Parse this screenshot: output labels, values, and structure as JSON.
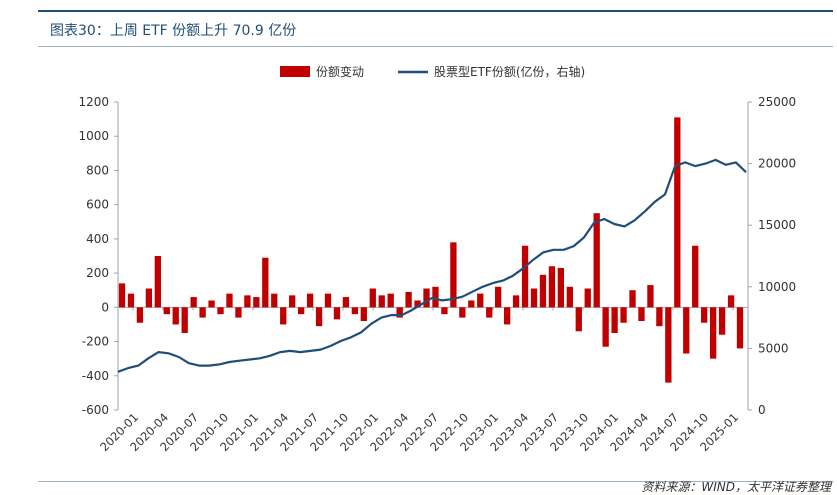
{
  "header": {
    "title": "图表30：上周 ETF 份额上升 70.9 亿份"
  },
  "footer": {
    "source": "资料来源：WIND，太平洋证券整理"
  },
  "colors": {
    "bar": "#c00000",
    "line": "#1f4e79",
    "axis": "#9aa5b1",
    "text": "#333333",
    "title": "#1f4e79"
  },
  "chart_data": {
    "type": "bar+line",
    "legend": {
      "position": "top-center",
      "entries": [
        "份额变动",
        "股票型ETF份额(亿份，右轴)"
      ]
    },
    "grid": false,
    "x_tick_labels": [
      "2020-01",
      "2020-04",
      "2020-07",
      "2020-10",
      "2021-01",
      "2021-04",
      "2021-07",
      "2021-10",
      "2022-01",
      "2022-04",
      "2022-07",
      "2022-10",
      "2023-01",
      "2023-04",
      "2023-07",
      "2023-10",
      "2024-01",
      "2024-04",
      "2024-07",
      "2024-10",
      "2025-01"
    ],
    "y_left": {
      "ylim": [
        -600,
        1200
      ],
      "ticks": [
        -600,
        -400,
        -200,
        0,
        200,
        400,
        600,
        800,
        1000,
        1200
      ]
    },
    "y_right": {
      "ylim": [
        0,
        25000
      ],
      "ticks": [
        0,
        5000,
        10000,
        15000,
        20000,
        25000
      ]
    },
    "share_points": [
      [
        0,
        3100
      ],
      [
        1,
        3400
      ],
      [
        2,
        3600
      ],
      [
        3,
        4200
      ],
      [
        4,
        4700
      ],
      [
        5,
        4600
      ],
      [
        6,
        4300
      ],
      [
        7,
        3800
      ],
      [
        8,
        3600
      ],
      [
        9,
        3600
      ],
      [
        10,
        3700
      ],
      [
        11,
        3900
      ],
      [
        12,
        4000
      ],
      [
        13,
        4100
      ],
      [
        14,
        4200
      ],
      [
        15,
        4400
      ],
      [
        16,
        4700
      ],
      [
        17,
        4800
      ],
      [
        18,
        4700
      ],
      [
        19,
        4800
      ],
      [
        20,
        4900
      ],
      [
        21,
        5200
      ],
      [
        22,
        5600
      ],
      [
        23,
        5900
      ],
      [
        24,
        6300
      ],
      [
        25,
        7000
      ],
      [
        26,
        7500
      ],
      [
        27,
        7700
      ],
      [
        28,
        7700
      ],
      [
        29,
        8100
      ],
      [
        30,
        8600
      ],
      [
        31,
        9100
      ],
      [
        32,
        8900
      ],
      [
        33,
        9000
      ],
      [
        34,
        9200
      ],
      [
        35,
        9600
      ],
      [
        36,
        10000
      ],
      [
        37,
        10300
      ],
      [
        38,
        10500
      ],
      [
        39,
        10900
      ],
      [
        40,
        11500
      ],
      [
        41,
        12200
      ],
      [
        42,
        12800
      ],
      [
        43,
        13000
      ],
      [
        44,
        13000
      ],
      [
        45,
        13300
      ],
      [
        46,
        14000
      ],
      [
        47,
        15200
      ],
      [
        48,
        15500
      ],
      [
        49,
        15100
      ],
      [
        50,
        14900
      ],
      [
        51,
        15400
      ],
      [
        52,
        16100
      ],
      [
        53,
        16900
      ],
      [
        54,
        17500
      ],
      [
        55,
        19800
      ],
      [
        56,
        20100
      ],
      [
        57,
        19800
      ],
      [
        58,
        20000
      ],
      [
        59,
        20300
      ],
      [
        60,
        19900
      ],
      [
        61,
        20100
      ],
      [
        62,
        19300
      ]
    ],
    "share_change_bars": [
      [
        0,
        140
      ],
      [
        1,
        80
      ],
      [
        2,
        -90
      ],
      [
        3,
        110
      ],
      [
        4,
        300
      ],
      [
        5,
        -40
      ],
      [
        6,
        -100
      ],
      [
        7,
        -150
      ],
      [
        8,
        60
      ],
      [
        9,
        -60
      ],
      [
        10,
        40
      ],
      [
        11,
        -40
      ],
      [
        12,
        80
      ],
      [
        13,
        -60
      ],
      [
        14,
        70
      ],
      [
        15,
        60
      ],
      [
        16,
        290
      ],
      [
        17,
        80
      ],
      [
        18,
        -100
      ],
      [
        19,
        70
      ],
      [
        20,
        -40
      ],
      [
        21,
        80
      ],
      [
        22,
        -110
      ],
      [
        23,
        80
      ],
      [
        24,
        -70
      ],
      [
        25,
        60
      ],
      [
        26,
        -40
      ],
      [
        27,
        -80
      ],
      [
        28,
        110
      ],
      [
        29,
        70
      ],
      [
        30,
        80
      ],
      [
        31,
        -60
      ],
      [
        32,
        90
      ],
      [
        33,
        40
      ],
      [
        34,
        110
      ],
      [
        35,
        120
      ],
      [
        36,
        -40
      ],
      [
        37,
        380
      ],
      [
        38,
        -60
      ],
      [
        39,
        40
      ],
      [
        40,
        80
      ],
      [
        41,
        -60
      ],
      [
        42,
        120
      ],
      [
        43,
        -100
      ],
      [
        44,
        70
      ],
      [
        45,
        360
      ],
      [
        46,
        110
      ],
      [
        47,
        190
      ],
      [
        48,
        240
      ],
      [
        49,
        230
      ],
      [
        50,
        120
      ],
      [
        51,
        -140
      ],
      [
        52,
        110
      ],
      [
        53,
        550
      ],
      [
        54,
        -230
      ],
      [
        55,
        -150
      ],
      [
        56,
        -90
      ],
      [
        57,
        100
      ],
      [
        58,
        -80
      ],
      [
        59,
        130
      ],
      [
        60,
        -110
      ],
      [
        61,
        -440
      ],
      [
        62,
        1110
      ],
      [
        63,
        -270
      ],
      [
        64,
        360
      ],
      [
        65,
        -90
      ],
      [
        66,
        -300
      ],
      [
        67,
        -160
      ],
      [
        68,
        70
      ],
      [
        69,
        -240
      ]
    ]
  }
}
